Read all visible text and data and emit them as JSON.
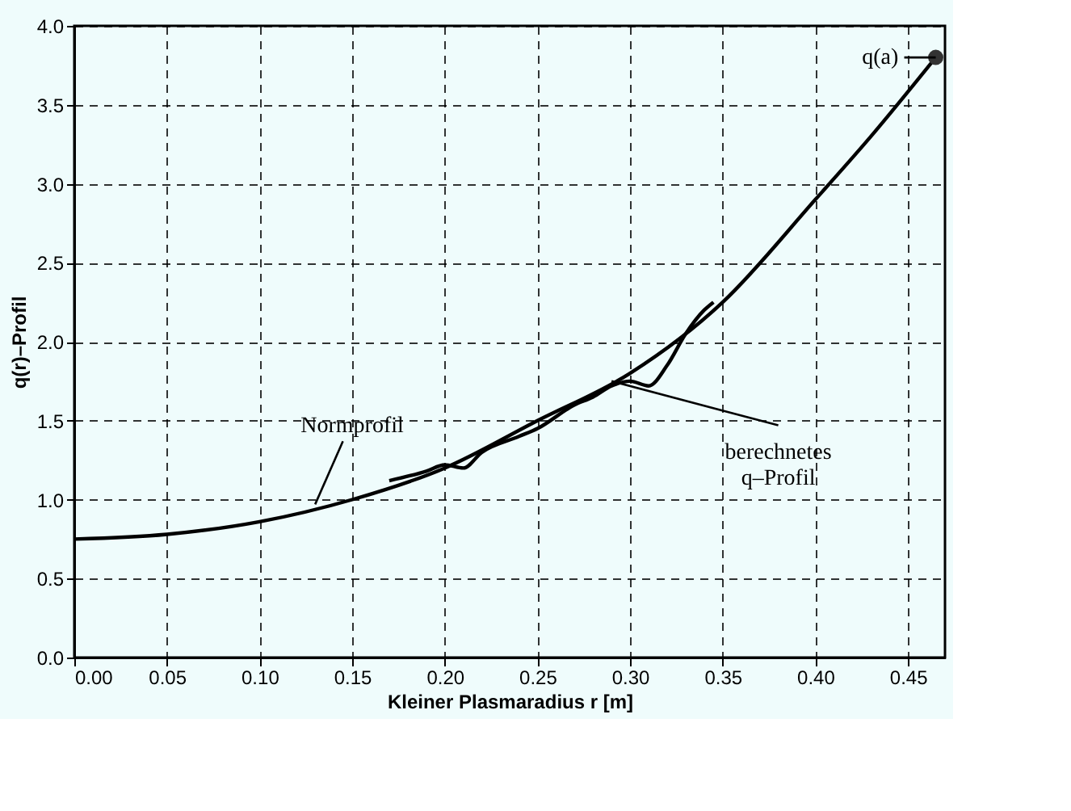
{
  "chart_data": {
    "type": "line",
    "xlabel": "Kleiner Plasmaradius r [m]",
    "ylabel": "q(r)–Profil",
    "xlim": [
      0,
      0.47
    ],
    "xticks": [
      {
        "value": 0,
        "label": "0.00"
      },
      0.05,
      {
        "value": 0.1,
        "label": "0.10"
      },
      0.15,
      {
        "value": 0.2,
        "label": "0.20"
      },
      0.25,
      {
        "value": 0.3,
        "label": "0.30"
      },
      0.35,
      {
        "value": 0.4,
        "label": "0.40"
      },
      0.45
    ],
    "ylim": [
      0,
      4
    ],
    "yticks": [
      {
        "value": 0,
        "label": "0.0"
      },
      0.5,
      {
        "value": 1,
        "label": "1.0"
      },
      1.5,
      {
        "value": 2,
        "label": "2.0"
      },
      2.5,
      {
        "value": 3,
        "label": "3.0"
      },
      3.5,
      {
        "value": 4,
        "label": "4.0"
      }
    ],
    "grid": true,
    "line_style": "solid",
    "series": [
      {
        "color": "#000000",
        "x": [
          0,
          0.05,
          0.1,
          0.15,
          0.2,
          0.25,
          0.3,
          0.35,
          0.4,
          0.43,
          0.465
        ],
        "values": [
          0.75,
          0.78,
          0.86,
          1.0,
          1.2,
          1.5,
          1.8,
          2.25,
          2.9,
          3.3,
          3.8
        ]
      },
      {
        "color": "#000000",
        "x": [
          0.17,
          0.19,
          0.2,
          0.21,
          0.22,
          0.24,
          0.25,
          0.27,
          0.28,
          0.29,
          0.3,
          0.31,
          0.32,
          0.33,
          0.34,
          0.345
        ],
        "values": [
          1.12,
          1.18,
          1.22,
          1.2,
          1.3,
          1.4,
          1.45,
          1.6,
          1.65,
          1.72,
          1.75,
          1.72,
          1.85,
          2.05,
          2.2,
          2.25
        ]
      },
      {
        "type": "scatter",
        "color": "#333333",
        "x": [
          0.465
        ],
        "values": [
          3.8
        ]
      }
    ],
    "annotations": [
      {
        "text": "Normprofil",
        "x": 0.13,
        "y": 0.97
      },
      {
        "text": "berechnetes\nq–Profil",
        "x": 0.29,
        "y": 1.75
      },
      {
        "text": "q(a)",
        "x": 0.465,
        "y": 3.8
      }
    ]
  }
}
